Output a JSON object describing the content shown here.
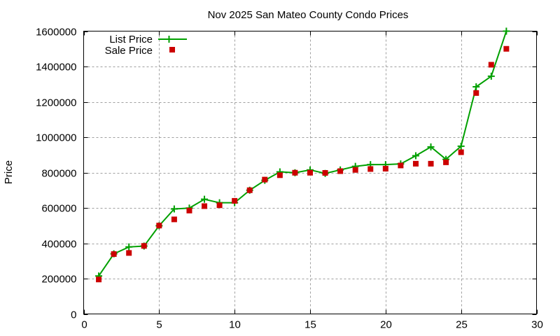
{
  "chart_data": {
    "type": "line",
    "title": "Nov 2025 San Mateo County Condo Prices",
    "xlabel": "",
    "ylabel": "Price",
    "xlim": [
      0,
      30
    ],
    "ylim": [
      0,
      1600000
    ],
    "xticks": [
      0,
      5,
      10,
      15,
      20,
      25,
      30
    ],
    "yticks": [
      0,
      200000,
      400000,
      600000,
      800000,
      1000000,
      1200000,
      1400000,
      1600000
    ],
    "grid": true,
    "legend_position": "top-left",
    "x": [
      1,
      2,
      3,
      4,
      5,
      6,
      7,
      8,
      9,
      10,
      11,
      12,
      13,
      14,
      15,
      16,
      17,
      18,
      19,
      20,
      21,
      22,
      23,
      24,
      25,
      26,
      27,
      28
    ],
    "series": [
      {
        "name": "List Price",
        "style": "linespoints",
        "marker": "plus",
        "color": "#00a000",
        "values": [
          215000,
          340000,
          379000,
          384000,
          499000,
          594000,
          599000,
          649000,
          629000,
          629000,
          700000,
          756000,
          804000,
          799000,
          815000,
          795000,
          815000,
          835000,
          845000,
          845000,
          849000,
          895000,
          945000,
          875000,
          949000,
          1285000,
          1345000,
          1600000
        ]
      },
      {
        "name": "Sale Price",
        "style": "points",
        "marker": "square",
        "color": "#cc0000",
        "values": [
          195000,
          339000,
          345000,
          385000,
          500000,
          535000,
          585000,
          610000,
          615000,
          640000,
          700000,
          760000,
          785000,
          799000,
          799000,
          798000,
          808000,
          815000,
          820000,
          822000,
          840000,
          850000,
          850000,
          858000,
          915000,
          1250000,
          1410000,
          1500000
        ]
      }
    ]
  }
}
